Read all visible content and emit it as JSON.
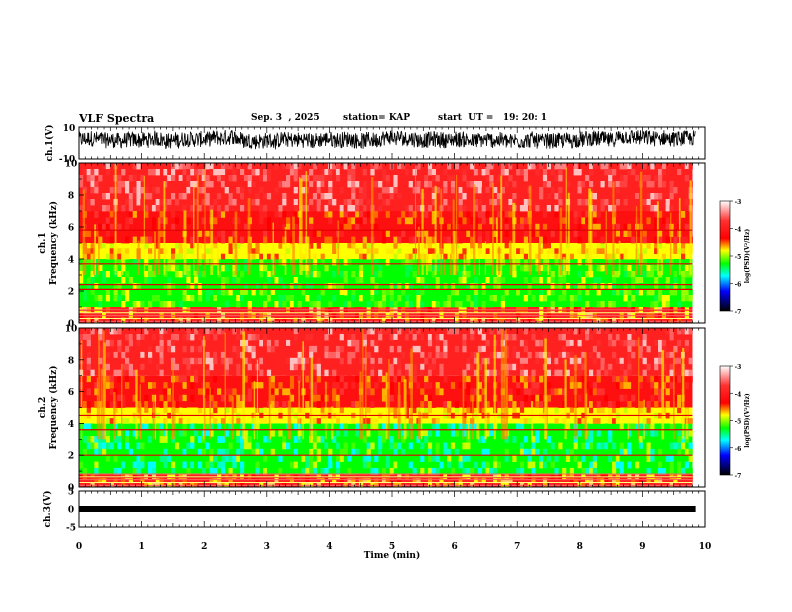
{
  "header": {
    "title": "VLF Spectra",
    "date": "Sep. 3  , 2025",
    "station": "station= KAP",
    "start": "start  UT =   19: 20: 1"
  },
  "colors": {
    "palette": [
      "#ffffff",
      "#ff2020",
      "#ffff00",
      "#00ff00",
      "#00ffff",
      "#0000ff",
      "#000000"
    ]
  },
  "chart_data": [
    {
      "type": "line",
      "name": "ch1-waveform",
      "ylabel": "ch.1(V)",
      "ylim": [
        -10,
        10
      ],
      "yticks": [
        "10",
        "-10"
      ],
      "xlim": [
        0,
        10
      ],
      "description_values": {
        "mean": 2,
        "amplitude": 5
      }
    },
    {
      "type": "heatmap",
      "name": "ch1-spectrogram",
      "ylabel_line1": "ch.1",
      "ylabel_line2": "Frequency (kHz)",
      "ylim": [
        0,
        10
      ],
      "yticks": [
        "0",
        "2",
        "4",
        "6",
        "8",
        "10"
      ],
      "xlim": [
        0,
        10
      ],
      "data_end_min": 9.8,
      "bands_khz": [
        [
          0,
          1,
          "red-yellow"
        ],
        [
          1,
          4,
          "green"
        ],
        [
          4,
          5,
          "yellow"
        ],
        [
          5,
          7,
          "red"
        ],
        [
          7,
          10,
          "white-red"
        ]
      ],
      "lines_khz": [
        0.8,
        2.1,
        2.4,
        3.7,
        5.8
      ],
      "colorbar": {
        "label": "log(PSD)(V²/Hz)",
        "ticks": [
          "-3",
          "-4",
          "-5",
          "-6",
          "-7"
        ],
        "range": [
          -7,
          -3
        ]
      }
    },
    {
      "type": "heatmap",
      "name": "ch2-spectrogram",
      "ylabel_line1": "ch.2",
      "ylabel_line2": "Frequency (kHz)",
      "ylim": [
        0,
        10
      ],
      "yticks": [
        "0",
        "2",
        "4",
        "6",
        "8",
        "10"
      ],
      "xlim": [
        0,
        10
      ],
      "data_end_min": 9.8,
      "bands_khz": [
        [
          0,
          0.8,
          "red-yellow"
        ],
        [
          0.8,
          4,
          "green-cyan"
        ],
        [
          4,
          5,
          "yellow"
        ],
        [
          5,
          7,
          "red"
        ],
        [
          7,
          10,
          "white-red"
        ]
      ],
      "lines_khz": [
        0.6,
        2.0,
        3.6,
        4.5
      ],
      "colorbar": {
        "label": "log(PSD)(V²/Hz)",
        "ticks": [
          "-3",
          "-4",
          "-5",
          "-6",
          "-7"
        ],
        "range": [
          -7,
          -3
        ]
      }
    },
    {
      "type": "line",
      "name": "ch3-waveform",
      "ylabel": "ch.3(V)",
      "ylim": [
        -5,
        5
      ],
      "yticks": [
        "5",
        "0",
        "-5"
      ],
      "xlim": [
        0,
        10
      ],
      "level": 0
    }
  ],
  "xaxis": {
    "label": "Time  (min)",
    "ticks": [
      "0",
      "1",
      "2",
      "3",
      "4",
      "5",
      "6",
      "7",
      "8",
      "9",
      "10"
    ]
  }
}
